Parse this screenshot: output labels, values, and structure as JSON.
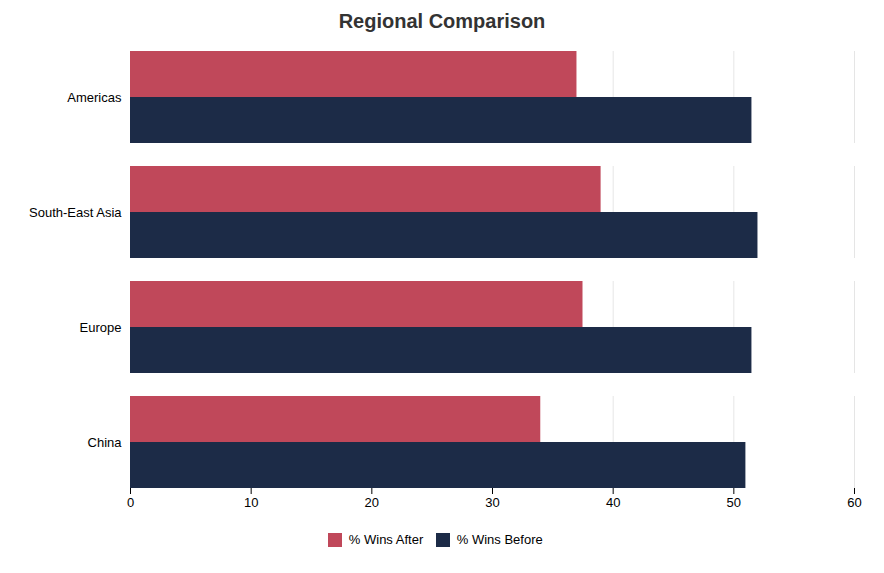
{
  "chart_data": {
    "type": "bar",
    "orientation": "horizontal",
    "title": "Regional Comparison",
    "categories": [
      "China",
      "Europe",
      "South-East Asia",
      "Americas"
    ],
    "series": [
      {
        "name": "% Wins After",
        "color": "#c0485a",
        "values": [
          34.0,
          37.5,
          39.0,
          37.0
        ]
      },
      {
        "name": "% Wins Before",
        "color": "#1c2b47",
        "values": [
          51.0,
          51.5,
          52.0,
          51.5
        ]
      }
    ],
    "xlim": [
      0,
      60
    ],
    "xticks": [
      0,
      10,
      20,
      30,
      40,
      50,
      60
    ],
    "grid": true,
    "legend": "bottom"
  }
}
